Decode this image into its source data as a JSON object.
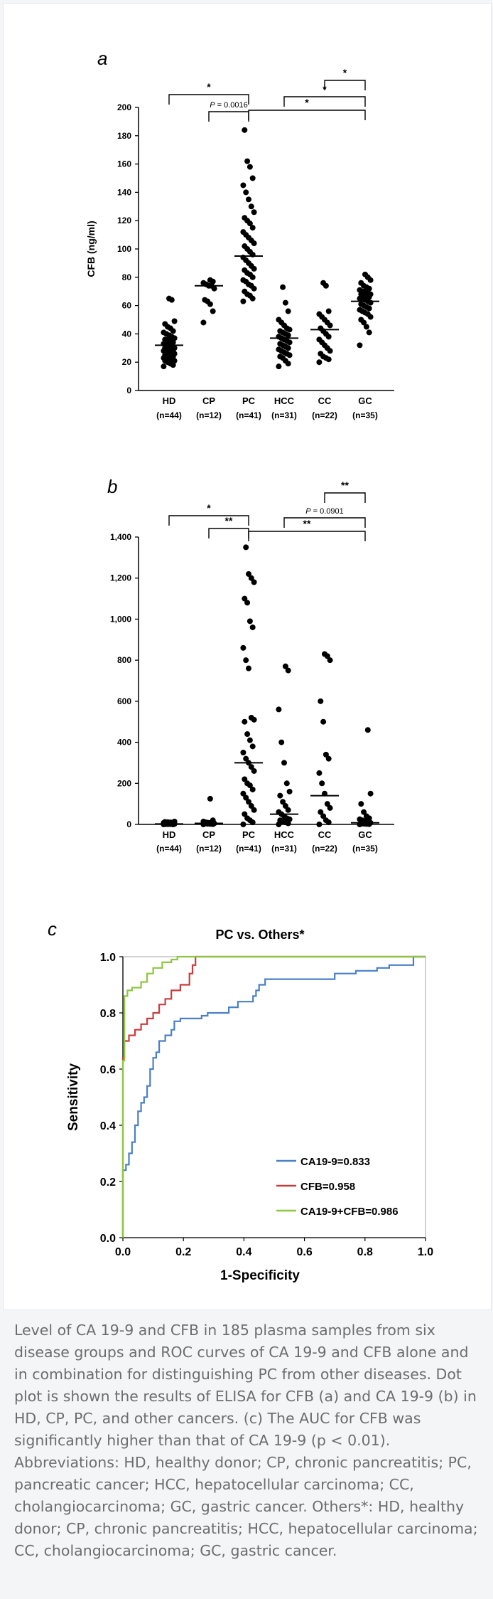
{
  "chart_data": [
    {
      "panel": "a",
      "type": "scatter",
      "ylabel": "CFB (ng/ml)",
      "ylim": [
        0,
        200
      ],
      "yticks": [
        "0",
        "20",
        "40",
        "60",
        "80",
        "100",
        "120",
        "140",
        "160",
        "180",
        "200"
      ],
      "categories": [
        "HD",
        "CP",
        "PC",
        "HCC",
        "CC",
        "GC"
      ],
      "counts": [
        "(n=44)",
        "(n=12)",
        "(n=41)",
        "(n=31)",
        "(n=22)",
        "(n=35)"
      ],
      "medians": [
        32,
        74,
        95,
        37,
        43,
        63
      ],
      "points": [
        [
          17,
          18,
          19,
          20,
          21,
          21,
          22,
          22,
          23,
          23,
          24,
          24,
          25,
          25,
          26,
          26,
          27,
          27,
          28,
          28,
          29,
          29,
          30,
          30,
          31,
          32,
          33,
          33,
          34,
          35,
          36,
          36,
          37,
          38,
          39,
          40,
          41,
          42,
          44,
          45,
          47,
          49,
          64,
          65
        ],
        [
          48,
          56,
          61,
          63,
          64,
          72,
          74,
          74,
          75,
          76,
          77,
          78
        ],
        [
          63,
          65,
          67,
          68,
          70,
          72,
          74,
          75,
          77,
          78,
          80,
          82,
          83,
          85,
          86,
          88,
          90,
          92,
          94,
          96,
          98,
          100,
          102,
          104,
          106,
          108,
          110,
          112,
          115,
          118,
          120,
          122,
          126,
          130,
          135,
          140,
          145,
          150,
          158,
          162,
          184
        ],
        [
          17,
          19,
          21,
          23,
          24,
          25,
          26,
          27,
          28,
          29,
          30,
          31,
          32,
          33,
          34,
          35,
          36,
          37,
          38,
          39,
          40,
          41,
          42,
          43,
          44,
          46,
          48,
          50,
          56,
          62,
          73
        ],
        [
          20,
          22,
          23,
          24,
          26,
          28,
          30,
          32,
          34,
          36,
          38,
          40,
          42,
          44,
          46,
          48,
          50,
          52,
          54,
          56,
          74,
          76
        ],
        [
          32,
          41,
          45,
          48,
          50,
          52,
          54,
          55,
          56,
          57,
          58,
          59,
          60,
          61,
          62,
          63,
          64,
          64,
          65,
          66,
          66,
          67,
          68,
          68,
          69,
          70,
          70,
          71,
          72,
          73,
          74,
          76,
          78,
          80,
          82
        ]
      ],
      "brackets": [
        {
          "from": 0,
          "to": 2,
          "label": "*"
        },
        {
          "from": 1,
          "to": 2,
          "label": "P = 0.0016"
        },
        {
          "from": 2,
          "to": 5,
          "label": "*"
        },
        {
          "from": 4,
          "to": 5,
          "label": "*"
        },
        {
          "from": 3,
          "to": 5,
          "label": "*"
        }
      ]
    },
    {
      "panel": "b",
      "type": "scatter",
      "ylabel": "",
      "ylim": [
        0,
        1400
      ],
      "yticks": [
        "0",
        "200",
        "400",
        "600",
        "800",
        "1,000",
        "1,200",
        "1,400"
      ],
      "categories": [
        "HD",
        "CP",
        "PC",
        "HCC",
        "CC",
        "GC"
      ],
      "counts": [
        "(n=44)",
        "(n=12)",
        "(n=41)",
        "(n=31)",
        "(n=22)",
        "(n=35)"
      ],
      "medians": [
        2,
        5,
        300,
        50,
        140,
        8
      ],
      "points": [
        [
          0,
          0,
          1,
          1,
          1,
          2,
          2,
          2,
          3,
          3,
          3,
          4,
          4,
          5,
          5,
          6,
          6,
          7,
          8,
          9,
          10,
          11,
          12,
          14
        ],
        [
          0,
          1,
          2,
          3,
          4,
          5,
          6,
          8,
          10,
          14,
          20,
          125
        ],
        [
          0,
          10,
          20,
          30,
          50,
          70,
          90,
          110,
          130,
          150,
          170,
          190,
          200,
          220,
          260,
          280,
          300,
          320,
          350,
          380,
          410,
          440,
          500,
          510,
          520,
          760,
          800,
          860,
          960,
          990,
          1080,
          1100,
          1180,
          1200,
          1220,
          1350
        ],
        [
          0,
          5,
          10,
          15,
          20,
          25,
          30,
          40,
          50,
          60,
          70,
          90,
          110,
          140,
          160,
          200,
          300,
          400,
          560,
          750,
          770
        ],
        [
          0,
          10,
          20,
          40,
          60,
          80,
          100,
          150,
          200,
          250,
          320,
          340,
          500,
          600,
          800,
          820,
          830
        ],
        [
          0,
          1,
          2,
          3,
          5,
          8,
          10,
          15,
          20,
          25,
          30,
          40,
          60,
          100,
          150,
          460
        ]
      ],
      "brackets": [
        {
          "from": 0,
          "to": 2,
          "label": "*"
        },
        {
          "from": 1,
          "to": 2,
          "label": "**"
        },
        {
          "from": 2,
          "to": 5,
          "label": "**"
        },
        {
          "from": 4,
          "to": 5,
          "label": "**"
        },
        {
          "from": 3,
          "to": 5,
          "label": "P = 0.0901"
        }
      ]
    },
    {
      "panel": "c",
      "type": "line",
      "title": "PC vs. Others*",
      "xlabel": "1-Specificity",
      "ylabel": "Sensitivity",
      "xlim": [
        0,
        1
      ],
      "ylim": [
        0,
        1
      ],
      "xticks": [
        "0.0",
        "0.2",
        "0.4",
        "0.6",
        "0.8",
        "1.0"
      ],
      "yticks": [
        "0.0",
        "0.2",
        "0.4",
        "0.6",
        "0.8",
        "1.0"
      ],
      "series": [
        {
          "name": "CA19-9=0.833",
          "color": "#4a7fc7",
          "points": [
            [
              0,
              0
            ],
            [
              0,
              0.24
            ],
            [
              0.01,
              0.24
            ],
            [
              0.01,
              0.26
            ],
            [
              0.02,
              0.26
            ],
            [
              0.02,
              0.3
            ],
            [
              0.03,
              0.3
            ],
            [
              0.03,
              0.34
            ],
            [
              0.04,
              0.34
            ],
            [
              0.04,
              0.4
            ],
            [
              0.05,
              0.4
            ],
            [
              0.05,
              0.45
            ],
            [
              0.06,
              0.45
            ],
            [
              0.06,
              0.48
            ],
            [
              0.07,
              0.48
            ],
            [
              0.07,
              0.5
            ],
            [
              0.08,
              0.5
            ],
            [
              0.08,
              0.54
            ],
            [
              0.09,
              0.54
            ],
            [
              0.09,
              0.6
            ],
            [
              0.1,
              0.6
            ],
            [
              0.1,
              0.64
            ],
            [
              0.11,
              0.64
            ],
            [
              0.11,
              0.66
            ],
            [
              0.12,
              0.66
            ],
            [
              0.12,
              0.7
            ],
            [
              0.14,
              0.7
            ],
            [
              0.14,
              0.72
            ],
            [
              0.16,
              0.72
            ],
            [
              0.16,
              0.74
            ],
            [
              0.17,
              0.74
            ],
            [
              0.17,
              0.77
            ],
            [
              0.19,
              0.77
            ],
            [
              0.19,
              0.78
            ],
            [
              0.26,
              0.78
            ],
            [
              0.26,
              0.79
            ],
            [
              0.28,
              0.79
            ],
            [
              0.28,
              0.8
            ],
            [
              0.35,
              0.8
            ],
            [
              0.35,
              0.82
            ],
            [
              0.38,
              0.82
            ],
            [
              0.38,
              0.84
            ],
            [
              0.43,
              0.84
            ],
            [
              0.43,
              0.86
            ],
            [
              0.44,
              0.86
            ],
            [
              0.44,
              0.88
            ],
            [
              0.45,
              0.88
            ],
            [
              0.45,
              0.9
            ],
            [
              0.47,
              0.9
            ],
            [
              0.47,
              0.92
            ],
            [
              0.7,
              0.92
            ],
            [
              0.7,
              0.94
            ],
            [
              0.77,
              0.94
            ],
            [
              0.77,
              0.95
            ],
            [
              0.84,
              0.95
            ],
            [
              0.84,
              0.96
            ],
            [
              0.88,
              0.96
            ],
            [
              0.88,
              0.97
            ],
            [
              0.96,
              0.97
            ],
            [
              0.96,
              1
            ],
            [
              1,
              1
            ]
          ]
        },
        {
          "name": "CFB=0.958",
          "color": "#cc3b3b",
          "points": [
            [
              0,
              0
            ],
            [
              0,
              0.64
            ],
            [
              0.005,
              0.64
            ],
            [
              0.005,
              0.7
            ],
            [
              0.02,
              0.7
            ],
            [
              0.02,
              0.72
            ],
            [
              0.04,
              0.72
            ],
            [
              0.04,
              0.74
            ],
            [
              0.06,
              0.74
            ],
            [
              0.06,
              0.76
            ],
            [
              0.08,
              0.76
            ],
            [
              0.08,
              0.78
            ],
            [
              0.1,
              0.78
            ],
            [
              0.1,
              0.8
            ],
            [
              0.12,
              0.8
            ],
            [
              0.12,
              0.83
            ],
            [
              0.14,
              0.83
            ],
            [
              0.14,
              0.85
            ],
            [
              0.16,
              0.85
            ],
            [
              0.16,
              0.88
            ],
            [
              0.19,
              0.88
            ],
            [
              0.19,
              0.9
            ],
            [
              0.22,
              0.9
            ],
            [
              0.22,
              0.94
            ],
            [
              0.23,
              0.94
            ],
            [
              0.23,
              0.97
            ],
            [
              0.24,
              0.97
            ],
            [
              0.24,
              1
            ],
            [
              1,
              1
            ]
          ]
        },
        {
          "name": "CA19-9+CFB=0.986",
          "color": "#8dc63f",
          "points": [
            [
              0,
              0
            ],
            [
              0,
              0.63
            ],
            [
              0.005,
              0.63
            ],
            [
              0.005,
              0.86
            ],
            [
              0.015,
              0.86
            ],
            [
              0.015,
              0.88
            ],
            [
              0.03,
              0.88
            ],
            [
              0.03,
              0.89
            ],
            [
              0.06,
              0.89
            ],
            [
              0.06,
              0.91
            ],
            [
              0.08,
              0.91
            ],
            [
              0.08,
              0.94
            ],
            [
              0.1,
              0.94
            ],
            [
              0.1,
              0.96
            ],
            [
              0.13,
              0.96
            ],
            [
              0.13,
              0.98
            ],
            [
              0.16,
              0.98
            ],
            [
              0.16,
              0.99
            ],
            [
              0.18,
              0.99
            ],
            [
              0.18,
              1
            ],
            [
              1,
              1
            ]
          ]
        }
      ]
    }
  ],
  "caption": "Level of CA 19-9 and CFB in 185 plasma samples from six disease groups and ROC curves of CA 19-9 and CFB alone and in combination for distinguishing PC from other diseases. Dot plot is shown the results of ELISA for CFB (a) and CA 19-9 (b) in HD, CP, PC, and other cancers. (c) The AUC for CFB was significantly higher than that of CA 19-9 (p < 0.01). Abbreviations: HD, healthy donor; CP, chronic pancreatitis; PC, pancreatic cancer; HCC, hepatocellular carcinoma; CC, cholangiocarcinoma; GC, gastric cancer. Others*: HD, healthy donor; CP, chronic pancreatitis; HCC, hepatocellular carcinoma; CC, cholangiocarcinoma; GC, gastric cancer."
}
